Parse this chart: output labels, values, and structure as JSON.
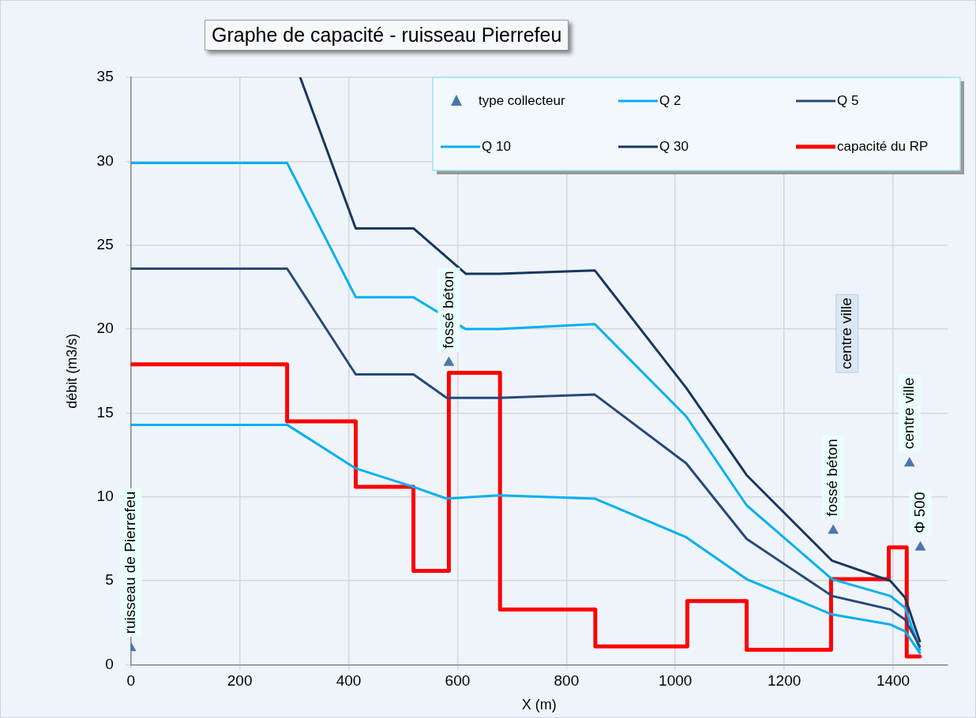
{
  "chart_data": {
    "type": "line",
    "title": "Graphe de capacité - ruisseau Pierrefeu",
    "xlabel": "X (m)",
    "ylabel": "débit (m3/s)",
    "xlim": [
      0,
      1500
    ],
    "xticks": [
      0,
      200,
      400,
      600,
      800,
      1000,
      1200,
      1400
    ],
    "ylim": [
      0,
      35
    ],
    "yticks": [
      0,
      5,
      10,
      15,
      20,
      25,
      30,
      35
    ],
    "grid": true,
    "legend": "top right",
    "marker": "none",
    "series": [
      {
        "name": "type collecteur",
        "type": "scatter",
        "marker": "triangle",
        "color": "#4a76b0",
        "x": [
          0,
          584,
          1290,
          1430,
          1450
        ],
        "values": [
          1.0,
          18.0,
          8.0,
          12.0,
          7.0
        ],
        "value_labels": [
          "ruisseau de Pierrefeu",
          "fossé béton",
          "fossé béton",
          "centre ville",
          "Φ 500"
        ]
      },
      {
        "name": "Q 2",
        "type": "line",
        "color": "#00b0f0",
        "x": [
          0,
          287,
          413,
          519,
          580,
          676,
          852,
          1020,
          1131,
          1288,
          1395,
          1422,
          1449
        ],
        "values": [
          14.3,
          14.3,
          11.7,
          10.6,
          9.9,
          10.1,
          9.9,
          7.6,
          5.1,
          3.0,
          2.4,
          2.0,
          0.7
        ]
      },
      {
        "name": "Q 5",
        "type": "line",
        "color": "#254a7c",
        "x": [
          0,
          287,
          413,
          519,
          580,
          676,
          852,
          1020,
          1131,
          1288,
          1395,
          1422,
          1449
        ],
        "values": [
          23.6,
          23.6,
          17.3,
          17.3,
          15.9,
          15.9,
          16.1,
          12.0,
          7.5,
          4.1,
          3.3,
          2.7,
          1.1
        ]
      },
      {
        "name": "Q 10",
        "type": "line",
        "color": "#00b0f0",
        "x": [
          0,
          287,
          413,
          519,
          615,
          676,
          852,
          1020,
          1131,
          1288,
          1395,
          1422,
          1449
        ],
        "values": [
          29.9,
          29.9,
          21.9,
          21.9,
          20.0,
          20.0,
          20.3,
          14.8,
          9.5,
          5.1,
          4.1,
          3.4,
          0.9
        ]
      },
      {
        "name": "Q 30",
        "type": "line",
        "color": "#17375e",
        "x": [
          311,
          413,
          519,
          615,
          676,
          852,
          1020,
          1131,
          1288,
          1395,
          1422,
          1449
        ],
        "values": [
          35,
          26.0,
          26.0,
          23.3,
          23.3,
          23.5,
          16.5,
          11.3,
          6.2,
          5.0,
          4.0,
          1.4
        ]
      },
      {
        "name": "capacité du RP",
        "type": "step",
        "color": "#ff0000",
        "x": [
          0,
          287,
          413,
          519,
          584,
          678,
          853,
          1022,
          1131,
          1286,
          1392,
          1425,
          1449
        ],
        "values": [
          17.9,
          14.5,
          10.6,
          5.6,
          17.4,
          3.3,
          1.1,
          3.8,
          0.9,
          5.1,
          7.0,
          0.5,
          0.5
        ]
      }
    ],
    "annotations": [
      "centre ville"
    ]
  }
}
